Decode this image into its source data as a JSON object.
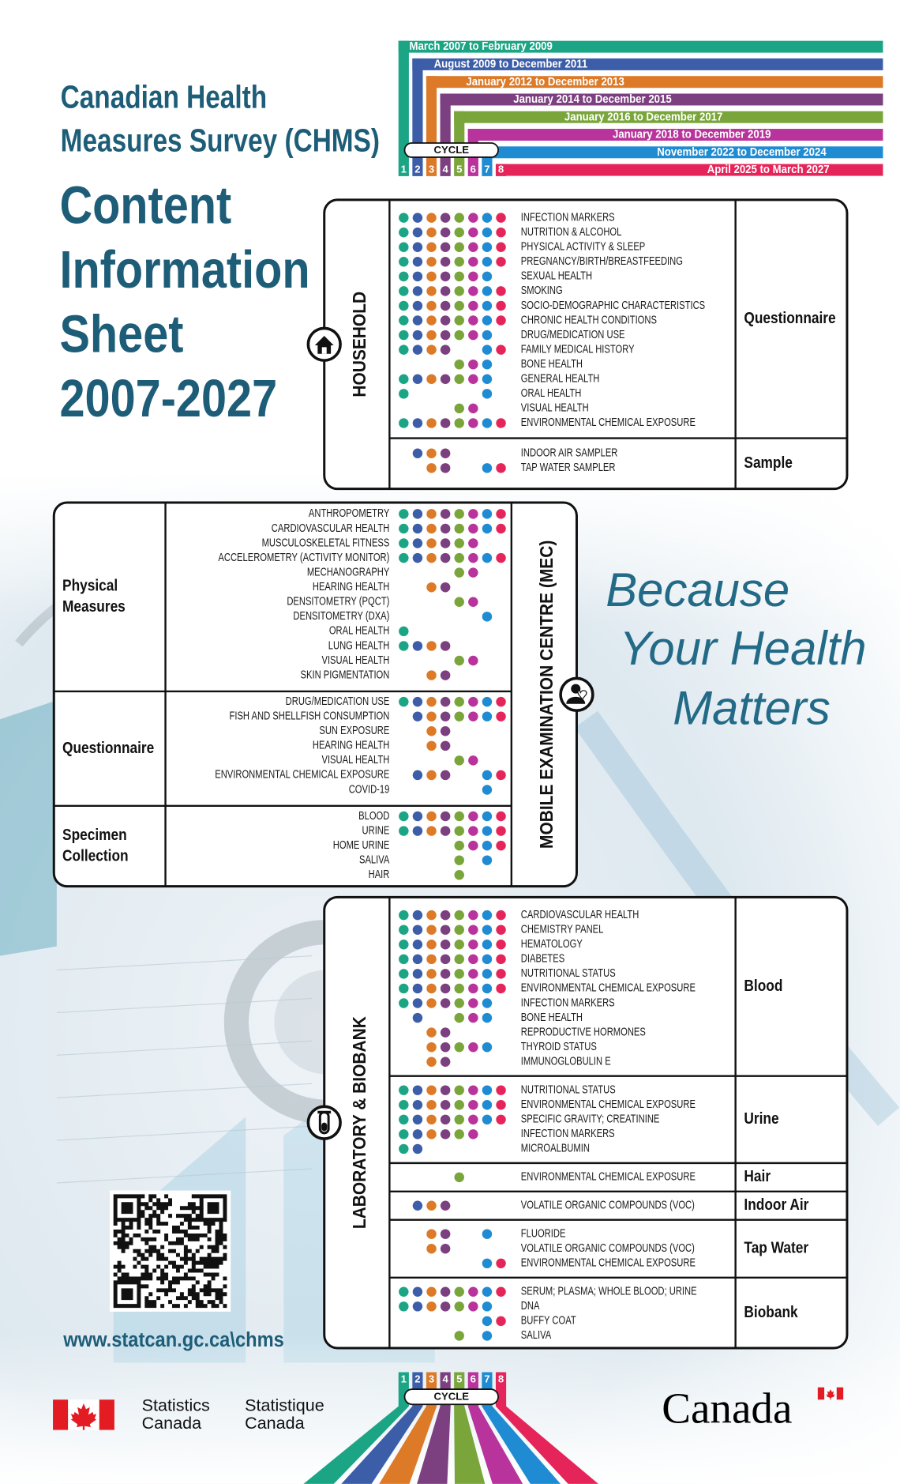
{
  "header": {
    "survey_title": [
      "Canadian Health",
      "Measures Survey (CHMS)"
    ],
    "sheet_title": [
      "Content",
      "Information",
      "Sheet",
      "2007-2027"
    ]
  },
  "cycle_label": "CYCLE",
  "cycles": [
    {
      "number": "1",
      "period": "March 2007 to February 2009",
      "color": "#1ba585"
    },
    {
      "number": "2",
      "period": "August 2009 to December 2011",
      "color": "#3c5ea9"
    },
    {
      "number": "3",
      "period": "January 2012 to December 2013",
      "color": "#dc7a28"
    },
    {
      "number": "4",
      "period": "January 2014 to December 2015",
      "color": "#7c3f7f"
    },
    {
      "number": "5",
      "period": "January 2016 to December 2017",
      "color": "#79a53b"
    },
    {
      "number": "6",
      "period": "January 2018 to December 2019",
      "color": "#b8349c"
    },
    {
      "number": "7",
      "period": "November 2022 to December 2024",
      "color": "#1f8bd2"
    },
    {
      "number": "8",
      "period": "April 2025 to March 2027",
      "color": "#e5245a"
    }
  ],
  "sections": [
    {
      "title": "HOUSEHOLD",
      "groups": [
        {
          "label": [
            "Questionnaire"
          ],
          "items": [
            {
              "name": "INFECTION MARKERS",
              "cycles": [
                1,
                2,
                3,
                4,
                5,
                6,
                7,
                8
              ]
            },
            {
              "name": "NUTRITION & ALCOHOL",
              "cycles": [
                1,
                2,
                3,
                4,
                5,
                6,
                7,
                8
              ]
            },
            {
              "name": "PHYSICAL ACTIVITY & SLEEP",
              "cycles": [
                1,
                2,
                3,
                4,
                5,
                6,
                7,
                8
              ]
            },
            {
              "name": "PREGNANCY/BIRTH/BREASTFEEDING",
              "cycles": [
                1,
                2,
                3,
                4,
                5,
                6,
                7,
                8
              ]
            },
            {
              "name": "SEXUAL HEALTH",
              "cycles": [
                1,
                2,
                3,
                4,
                5,
                6,
                7
              ]
            },
            {
              "name": "SMOKING",
              "cycles": [
                1,
                2,
                3,
                4,
                5,
                6,
                7,
                8
              ]
            },
            {
              "name": "SOCIO-DEMOGRAPHIC CHARACTERISTICS",
              "cycles": [
                1,
                2,
                3,
                4,
                5,
                6,
                7,
                8
              ]
            },
            {
              "name": "CHRONIC HEALTH CONDITIONS",
              "cycles": [
                1,
                2,
                3,
                4,
                5,
                6,
                7,
                8
              ]
            },
            {
              "name": "DRUG/MEDICATION USE",
              "cycles": [
                1,
                2,
                3,
                4,
                5,
                6,
                7
              ]
            },
            {
              "name": "FAMILY MEDICAL HISTORY",
              "cycles": [
                1,
                2,
                3,
                4,
                7,
                8
              ]
            },
            {
              "name": "BONE HEALTH",
              "cycles": [
                5,
                6,
                7
              ]
            },
            {
              "name": "GENERAL HEALTH",
              "cycles": [
                1,
                2,
                3,
                4,
                5,
                6,
                7
              ]
            },
            {
              "name": "ORAL HEALTH",
              "cycles": [
                1,
                7
              ]
            },
            {
              "name": "VISUAL HEALTH",
              "cycles": [
                5,
                6
              ]
            },
            {
              "name": "ENVIRONMENTAL CHEMICAL EXPOSURE",
              "cycles": [
                1,
                2,
                3,
                4,
                5,
                6,
                7,
                8
              ]
            }
          ]
        },
        {
          "label": [
            "Sample"
          ],
          "items": [
            {
              "name": "INDOOR AIR SAMPLER",
              "cycles": [
                2,
                3,
                4
              ]
            },
            {
              "name": "TAP WATER SAMPLER",
              "cycles": [
                3,
                4,
                7,
                8
              ]
            }
          ]
        }
      ]
    },
    {
      "title": "MOBILE EXAMINATION CENTRE (MEC)",
      "groups": [
        {
          "label": [
            "Physical",
            "Measures"
          ],
          "items": [
            {
              "name": "ANTHROPOMETRY",
              "cycles": [
                1,
                2,
                3,
                4,
                5,
                6,
                7,
                8
              ]
            },
            {
              "name": "CARDIOVASCULAR HEALTH",
              "cycles": [
                1,
                2,
                3,
                4,
                5,
                6,
                7,
                8
              ]
            },
            {
              "name": "MUSCULOSKELETAL FITNESS",
              "cycles": [
                1,
                2,
                3,
                4,
                5,
                6
              ]
            },
            {
              "name": "ACCELEROMETRY (ACTIVITY MONITOR)",
              "cycles": [
                1,
                2,
                3,
                4,
                5,
                6,
                7,
                8
              ]
            },
            {
              "name": "MECHANOGRAPHY",
              "cycles": [
                5,
                6
              ]
            },
            {
              "name": "HEARING HEALTH",
              "cycles": [
                3,
                4
              ]
            },
            {
              "name": "DENSITOMETRY (PQCT)",
              "cycles": [
                5,
                6
              ]
            },
            {
              "name": "DENSITOMETRY (DXA)",
              "cycles": [
                7
              ]
            },
            {
              "name": "ORAL HEALTH",
              "cycles": [
                1
              ]
            },
            {
              "name": "LUNG HEALTH",
              "cycles": [
                1,
                2,
                3,
                4
              ]
            },
            {
              "name": "VISUAL HEALTH",
              "cycles": [
                5,
                6
              ]
            },
            {
              "name": "SKIN PIGMENTATION",
              "cycles": [
                3,
                4
              ]
            }
          ]
        },
        {
          "label": [
            "Questionnaire"
          ],
          "items": [
            {
              "name": "DRUG/MEDICATION USE",
              "cycles": [
                1,
                2,
                3,
                4,
                5,
                6,
                7,
                8
              ]
            },
            {
              "name": "FISH AND SHELLFISH CONSUMPTION",
              "cycles": [
                2,
                3,
                4,
                5,
                6,
                7,
                8
              ]
            },
            {
              "name": "SUN EXPOSURE",
              "cycles": [
                3,
                4
              ]
            },
            {
              "name": "HEARING HEALTH",
              "cycles": [
                3,
                4
              ]
            },
            {
              "name": "VISUAL HEALTH",
              "cycles": [
                5,
                6
              ]
            },
            {
              "name": "ENVIRONMENTAL CHEMICAL EXPOSURE",
              "cycles": [
                2,
                3,
                4,
                7,
                8
              ]
            },
            {
              "name": "COVID-19",
              "cycles": [
                7
              ]
            }
          ]
        },
        {
          "label": [
            "Specimen",
            "Collection"
          ],
          "items": [
            {
              "name": "BLOOD",
              "cycles": [
                1,
                2,
                3,
                4,
                5,
                6,
                7,
                8
              ]
            },
            {
              "name": "URINE",
              "cycles": [
                1,
                2,
                3,
                4,
                5,
                6,
                7,
                8
              ]
            },
            {
              "name": "HOME URINE",
              "cycles": [
                5,
                6,
                7,
                8
              ]
            },
            {
              "name": "SALIVA",
              "cycles": [
                5,
                7
              ]
            },
            {
              "name": "HAIR",
              "cycles": [
                5
              ]
            }
          ]
        }
      ]
    },
    {
      "title": "LABORATORY & BIOBANK",
      "groups": [
        {
          "label": [
            "Blood"
          ],
          "items": [
            {
              "name": "CARDIOVASCULAR HEALTH",
              "cycles": [
                1,
                2,
                3,
                4,
                5,
                6,
                7,
                8
              ]
            },
            {
              "name": "CHEMISTRY PANEL",
              "cycles": [
                1,
                2,
                3,
                4,
                5,
                6,
                7,
                8
              ]
            },
            {
              "name": "HEMATOLOGY",
              "cycles": [
                1,
                2,
                3,
                4,
                5,
                6,
                7,
                8
              ]
            },
            {
              "name": "DIABETES",
              "cycles": [
                1,
                2,
                3,
                4,
                5,
                6,
                7,
                8
              ]
            },
            {
              "name": "NUTRITIONAL STATUS",
              "cycles": [
                1,
                2,
                3,
                4,
                5,
                6,
                7,
                8
              ]
            },
            {
              "name": "ENVIRONMENTAL CHEMICAL EXPOSURE",
              "cycles": [
                1,
                2,
                3,
                4,
                5,
                6,
                7,
                8
              ]
            },
            {
              "name": "INFECTION MARKERS",
              "cycles": [
                1,
                2,
                3,
                4,
                5,
                6,
                7
              ]
            },
            {
              "name": "BONE HEALTH",
              "cycles": [
                2,
                5,
                6,
                7
              ]
            },
            {
              "name": "REPRODUCTIVE  HORMONES",
              "cycles": [
                3,
                4
              ]
            },
            {
              "name": "THYROID STATUS",
              "cycles": [
                3,
                4,
                5,
                6,
                7
              ]
            },
            {
              "name": "IMMUNOGLOBULIN E",
              "cycles": [
                3,
                4
              ]
            }
          ]
        },
        {
          "label": [
            "Urine"
          ],
          "items": [
            {
              "name": "NUTRITIONAL STATUS",
              "cycles": [
                1,
                2,
                3,
                4,
                5,
                6,
                7,
                8
              ]
            },
            {
              "name": "ENVIRONMENTAL CHEMICAL EXPOSURE",
              "cycles": [
                1,
                2,
                3,
                4,
                5,
                6,
                7,
                8
              ]
            },
            {
              "name": "SPECIFIC GRAVITY; CREATININE",
              "cycles": [
                1,
                2,
                3,
                4,
                5,
                6,
                7,
                8
              ]
            },
            {
              "name": "INFECTION MARKERS",
              "cycles": [
                1,
                2,
                3,
                4,
                5,
                6
              ]
            },
            {
              "name": "MICROALBUMIN",
              "cycles": [
                1,
                2
              ]
            }
          ]
        },
        {
          "label": [
            "Hair"
          ],
          "items": [
            {
              "name": "ENVIRONMENTAL CHEMICAL EXPOSURE",
              "cycles": [
                5
              ]
            }
          ]
        },
        {
          "label": [
            "Indoor Air"
          ],
          "items": [
            {
              "name": "VOLATILE ORGANIC COMPOUNDS (VOC)",
              "cycles": [
                2,
                3,
                4
              ]
            }
          ]
        },
        {
          "label": [
            "Tap Water"
          ],
          "items": [
            {
              "name": "FLUORIDE",
              "cycles": [
                3,
                4,
                7
              ]
            },
            {
              "name": "VOLATILE ORGANIC COMPOUNDS (VOC)",
              "cycles": [
                3,
                4
              ]
            },
            {
              "name": "ENVIRONMENTAL CHEMICAL EXPOSURE",
              "cycles": [
                7,
                8
              ]
            }
          ]
        },
        {
          "label": [
            "Biobank"
          ],
          "items": [
            {
              "name": "SERUM; PLASMA; WHOLE BLOOD; URINE",
              "cycles": [
                1,
                2,
                3,
                4,
                5,
                6,
                7,
                8
              ]
            },
            {
              "name": "DNA",
              "cycles": [
                1,
                2,
                3,
                4,
                5,
                6,
                7
              ]
            },
            {
              "name": "BUFFY COAT",
              "cycles": [
                7,
                8
              ]
            },
            {
              "name": "SALIVA",
              "cycles": [
                5,
                7
              ]
            }
          ]
        }
      ]
    }
  ],
  "slogan": [
    "Because",
    "Your Health",
    "Matters"
  ],
  "url": "www.statcan.gc.ca\\chms",
  "footer": {
    "agency_en": [
      "Statistics",
      "Canada"
    ],
    "agency_fr": [
      "Statistique",
      "Canada"
    ],
    "wordmark": "Canada"
  }
}
